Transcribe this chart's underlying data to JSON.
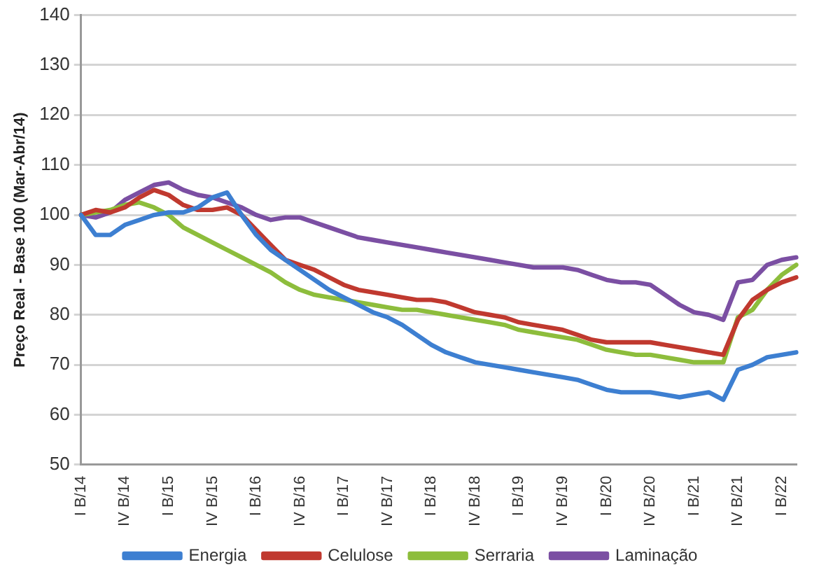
{
  "chart_data": {
    "type": "line",
    "ylabel": "Preço Real - Base 100 (Mar-Abr/14)",
    "categories": [
      "I B/14",
      null,
      null,
      "IV B/14",
      null,
      null,
      "I B/15",
      null,
      null,
      "IV B/15",
      null,
      null,
      "I B/16",
      null,
      null,
      "IV B/16",
      null,
      null,
      "I B/17",
      null,
      null,
      "IV B/17",
      null,
      null,
      "I B/18",
      null,
      null,
      "IV B/18",
      null,
      null,
      "I B/19",
      null,
      null,
      "IV B/19",
      null,
      null,
      "I B/20",
      null,
      null,
      "IV B/20",
      null,
      null,
      "I B/21",
      null,
      null,
      "IV B/21",
      null,
      null,
      "I B/22",
      null
    ],
    "series": [
      {
        "name": "Energia",
        "color": "#3d7fd1",
        "values": [
          100,
          96,
          96,
          98,
          99,
          100,
          100.5,
          100.5,
          101.5,
          103.5,
          104.5,
          100,
          96,
          93,
          91,
          89,
          87,
          85,
          83.5,
          82,
          80.5,
          79.5,
          78,
          76,
          74,
          72.5,
          71.5,
          70.5,
          70,
          69.5,
          69,
          68.5,
          68,
          67.5,
          67,
          66,
          65,
          64.5,
          64.5,
          64.5,
          64,
          63.5,
          64,
          64.5,
          63,
          69,
          70,
          71.5,
          72,
          72.5
        ]
      },
      {
        "name": "Celulose",
        "color": "#c0392f",
        "values": [
          100,
          101,
          100.5,
          101.5,
          103.5,
          105,
          104,
          102,
          101,
          101,
          101.5,
          100,
          97,
          94,
          91,
          90,
          89,
          87.5,
          86,
          85,
          84.5,
          84,
          83.5,
          83,
          83,
          82.5,
          81.5,
          80.5,
          80,
          79.5,
          78.5,
          78,
          77.5,
          77,
          76,
          75,
          74.5,
          74.5,
          74.5,
          74.5,
          74,
          73.5,
          73,
          72.5,
          72,
          79,
          83,
          85,
          86.5,
          87.5
        ]
      },
      {
        "name": "Serraria",
        "color": "#8dbd3c",
        "values": [
          100,
          100.5,
          101,
          102,
          102.5,
          101.5,
          100,
          97.5,
          96,
          94.5,
          93,
          91.5,
          90,
          88.5,
          86.5,
          85,
          84,
          83.5,
          83,
          82.5,
          82,
          81.5,
          81,
          81,
          80.5,
          80,
          79.5,
          79,
          78.5,
          78,
          77,
          76.5,
          76,
          75.5,
          75,
          74,
          73,
          72.5,
          72,
          72,
          71.5,
          71,
          70.5,
          70.5,
          70.5,
          79.5,
          81,
          85,
          88,
          90
        ]
      },
      {
        "name": "Laminação",
        "color": "#7b4fa3",
        "values": [
          100,
          99.5,
          100.5,
          103,
          104.5,
          106,
          106.5,
          105,
          104,
          103.5,
          102.5,
          101.5,
          100,
          99,
          99.5,
          99.5,
          98.5,
          97.5,
          96.5,
          95.5,
          95,
          94.5,
          94,
          93.5,
          93,
          92.5,
          92,
          91.5,
          91,
          90.5,
          90,
          89.5,
          89.5,
          89.5,
          89,
          88,
          87,
          86.5,
          86.5,
          86,
          84,
          82,
          80.5,
          80,
          79,
          86.5,
          87,
          90,
          91,
          91.5
        ]
      }
    ],
    "ylim": [
      50,
      140
    ],
    "yticks": [
      50,
      60,
      70,
      80,
      90,
      100,
      110,
      120,
      130,
      140
    ],
    "grid": "y",
    "legend": "bottom",
    "marker": "none",
    "line_style": "solid"
  }
}
